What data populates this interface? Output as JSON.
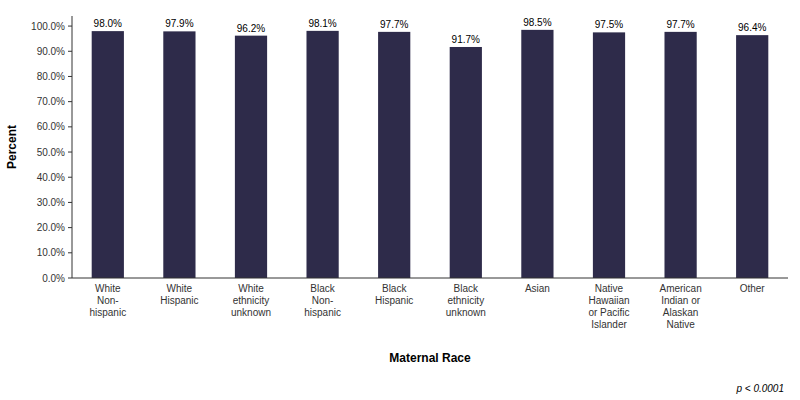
{
  "chart_data": {
    "type": "bar",
    "categories": [
      "White\nNon-\nhispanic",
      "White\nHispanic",
      "White\nethnicity\nunknown",
      "Black\nNon-\nhispanic",
      "Black\nHispanic",
      "Black\nethnicity\nunknown",
      "Asian",
      "Native\nHawaiian\nor Pacific\nIslander",
      "American\nIndian or\nAlaskan\nNative",
      "Other"
    ],
    "values": [
      98.0,
      97.9,
      96.2,
      98.1,
      97.7,
      91.7,
      98.5,
      97.5,
      97.7,
      96.4
    ],
    "value_labels": [
      "98.0%",
      "97.9%",
      "96.2%",
      "98.1%",
      "97.7%",
      "91.7%",
      "98.5%",
      "97.5%",
      "97.7%",
      "96.4%"
    ],
    "data_labels": true,
    "color": "#2E2B4A",
    "ylabel": "Percent",
    "xlabel": "Maternal Race",
    "ylim": [
      0,
      104
    ],
    "yticks": [
      {
        "value": 0,
        "label": "0.0%"
      },
      {
        "value": 10,
        "label": "10.0%"
      },
      {
        "value": 20,
        "label": "20.0%"
      },
      {
        "value": 30,
        "label": "30.0%"
      },
      {
        "value": 40,
        "label": "40.0%"
      },
      {
        "value": 50,
        "label": "50.0%"
      },
      {
        "value": 60,
        "label": "60.0%"
      },
      {
        "value": 70,
        "label": "70.0%"
      },
      {
        "value": 80,
        "label": "80.0%"
      },
      {
        "value": 90,
        "label": "90.0%"
      },
      {
        "value": 100,
        "label": "100.0%"
      }
    ],
    "annotation": "p < 0.0001",
    "grid": false
  }
}
